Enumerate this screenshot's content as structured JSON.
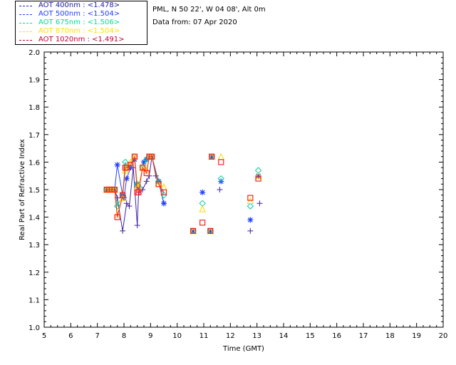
{
  "header": {
    "location": "PML, N 50 22', W 04 08', Alt 0m",
    "date": "Data from: 07 Apr 2020"
  },
  "legend": [
    {
      "label": "AOT  400nm : <1.478>",
      "color": "#2020a0"
    },
    {
      "label": "AOT  500nm : <1.504>",
      "color": "#2040ff"
    },
    {
      "label": "AOT  675nm : <1.506>",
      "color": "#00e090"
    },
    {
      "label": "AOT  870nm : <1.504>",
      "color": "#ffe000"
    },
    {
      "label": "AOT 1020nm : <1.491>",
      "color": "#c00030"
    }
  ],
  "chart_data": {
    "type": "scatter",
    "xlabel": "Time (GMT)",
    "ylabel": "Real Part of Refractive Index",
    "xlim": [
      5,
      20
    ],
    "ylim": [
      1.0,
      2.0
    ],
    "xticks": [
      "5",
      "6",
      "7",
      "8",
      "9",
      "10",
      "11",
      "12",
      "13",
      "14",
      "15",
      "16",
      "17",
      "18",
      "19",
      "20"
    ],
    "yticks": [
      "1.0",
      "1.1",
      "1.2",
      "1.3",
      "1.4",
      "1.5",
      "1.6",
      "1.7",
      "1.8",
      "1.9",
      "2.0"
    ],
    "series": [
      {
        "name": "AOT  400nm : <1.478>",
        "color": "#4020a0",
        "marker": "plus",
        "x": [
          7.35,
          7.45,
          7.55,
          7.65,
          7.75,
          7.95,
          8.1,
          8.2,
          8.35,
          8.5,
          8.55,
          8.7,
          8.85,
          8.95,
          9.05,
          9.2,
          9.3,
          9.5,
          10.6,
          11.25,
          11.3,
          11.6,
          12.75,
          13.05,
          13.1
        ],
        "y": [
          1.5,
          1.5,
          1.5,
          1.5,
          1.47,
          1.35,
          1.45,
          1.44,
          1.58,
          1.37,
          1.49,
          1.5,
          1.53,
          1.55,
          1.62,
          1.55,
          1.53,
          1.45,
          1.35,
          1.35,
          1.62,
          1.5,
          1.35,
          1.55,
          1.45
        ]
      },
      {
        "name": "AOT  500nm : <1.504>",
        "color": "#2040ff",
        "marker": "star",
        "x": [
          7.35,
          7.45,
          7.55,
          7.65,
          7.75,
          7.95,
          8.0,
          8.1,
          8.25,
          8.4,
          8.5,
          8.55,
          8.75,
          8.85,
          8.95,
          9.05,
          9.3,
          9.5,
          10.6,
          10.95,
          11.25,
          11.3,
          11.65,
          12.75,
          13.05
        ],
        "y": [
          1.5,
          1.5,
          1.5,
          1.5,
          1.59,
          1.48,
          1.47,
          1.54,
          1.58,
          1.61,
          1.52,
          1.51,
          1.6,
          1.61,
          1.62,
          1.62,
          1.53,
          1.45,
          1.35,
          1.49,
          1.35,
          1.62,
          1.53,
          1.39,
          1.55
        ]
      },
      {
        "name": "AOT  675nm : <1.506>",
        "color": "#00d0a0",
        "marker": "diamond",
        "x": [
          7.35,
          7.45,
          7.55,
          7.65,
          7.75,
          7.95,
          8.05,
          8.1,
          8.25,
          8.4,
          8.5,
          8.55,
          8.7,
          8.85,
          8.95,
          9.05,
          9.3,
          9.5,
          10.6,
          10.95,
          11.25,
          11.3,
          11.65,
          12.75,
          13.05
        ],
        "y": [
          1.5,
          1.5,
          1.5,
          1.5,
          1.44,
          1.48,
          1.6,
          1.58,
          1.59,
          1.62,
          1.52,
          1.51,
          1.58,
          1.61,
          1.62,
          1.62,
          1.53,
          1.48,
          1.35,
          1.45,
          1.35,
          1.62,
          1.54,
          1.44,
          1.57
        ]
      },
      {
        "name": "AOT  870nm : <1.504>",
        "color": "#ffd800",
        "marker": "triangle",
        "x": [
          7.35,
          7.45,
          7.55,
          7.65,
          7.75,
          7.95,
          8.05,
          8.1,
          8.25,
          8.4,
          8.5,
          8.55,
          8.7,
          8.85,
          8.95,
          9.05,
          9.3,
          9.5,
          10.6,
          10.95,
          11.25,
          11.3,
          11.65,
          12.75,
          13.05
        ],
        "y": [
          1.5,
          1.5,
          1.5,
          1.5,
          1.41,
          1.47,
          1.57,
          1.58,
          1.6,
          1.62,
          1.51,
          1.51,
          1.58,
          1.57,
          1.62,
          1.62,
          1.52,
          1.51,
          1.35,
          1.43,
          1.35,
          1.62,
          1.62,
          1.46,
          1.55
        ]
      },
      {
        "name": "AOT 1020nm : <1.491>",
        "color": "#ff2020",
        "marker": "square",
        "x": [
          7.35,
          7.45,
          7.55,
          7.65,
          7.75,
          7.95,
          8.05,
          8.1,
          8.25,
          8.4,
          8.5,
          8.55,
          8.7,
          8.85,
          8.95,
          9.05,
          9.3,
          9.5,
          10.6,
          10.95,
          11.25,
          11.3,
          11.65,
          12.75,
          13.05
        ],
        "y": [
          1.5,
          1.5,
          1.5,
          1.5,
          1.4,
          1.48,
          1.58,
          1.58,
          1.59,
          1.62,
          1.49,
          1.49,
          1.58,
          1.56,
          1.62,
          1.62,
          1.52,
          1.49,
          1.35,
          1.38,
          1.35,
          1.62,
          1.6,
          1.47,
          1.54
        ]
      }
    ]
  }
}
